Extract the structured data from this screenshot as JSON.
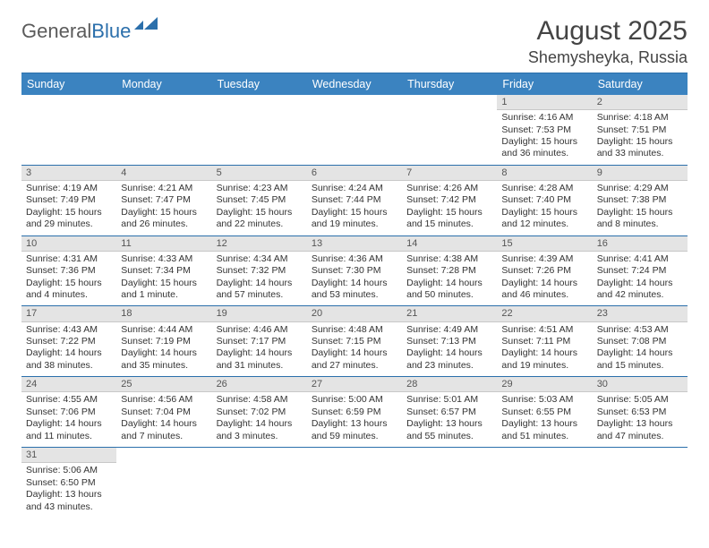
{
  "logo": {
    "text1": "General",
    "text2": "Blue"
  },
  "title": "August 2025",
  "location": "Shemysheyka, Russia",
  "colors": {
    "header_bg": "#3b83c0",
    "header_text": "#ffffff",
    "border": "#2b6fab",
    "daynum_bg": "#e4e4e4",
    "text": "#333333",
    "logo_gray": "#5b5b5b",
    "logo_blue": "#2b6fab"
  },
  "day_names": [
    "Sunday",
    "Monday",
    "Tuesday",
    "Wednesday",
    "Thursday",
    "Friday",
    "Saturday"
  ],
  "weeks": [
    [
      {
        "n": "",
        "empty": true
      },
      {
        "n": "",
        "empty": true
      },
      {
        "n": "",
        "empty": true
      },
      {
        "n": "",
        "empty": true
      },
      {
        "n": "",
        "empty": true
      },
      {
        "n": "1",
        "sunrise": "Sunrise: 4:16 AM",
        "sunset": "Sunset: 7:53 PM",
        "daylight": "Daylight: 15 hours and 36 minutes."
      },
      {
        "n": "2",
        "sunrise": "Sunrise: 4:18 AM",
        "sunset": "Sunset: 7:51 PM",
        "daylight": "Daylight: 15 hours and 33 minutes."
      }
    ],
    [
      {
        "n": "3",
        "sunrise": "Sunrise: 4:19 AM",
        "sunset": "Sunset: 7:49 PM",
        "daylight": "Daylight: 15 hours and 29 minutes."
      },
      {
        "n": "4",
        "sunrise": "Sunrise: 4:21 AM",
        "sunset": "Sunset: 7:47 PM",
        "daylight": "Daylight: 15 hours and 26 minutes."
      },
      {
        "n": "5",
        "sunrise": "Sunrise: 4:23 AM",
        "sunset": "Sunset: 7:45 PM",
        "daylight": "Daylight: 15 hours and 22 minutes."
      },
      {
        "n": "6",
        "sunrise": "Sunrise: 4:24 AM",
        "sunset": "Sunset: 7:44 PM",
        "daylight": "Daylight: 15 hours and 19 minutes."
      },
      {
        "n": "7",
        "sunrise": "Sunrise: 4:26 AM",
        "sunset": "Sunset: 7:42 PM",
        "daylight": "Daylight: 15 hours and 15 minutes."
      },
      {
        "n": "8",
        "sunrise": "Sunrise: 4:28 AM",
        "sunset": "Sunset: 7:40 PM",
        "daylight": "Daylight: 15 hours and 12 minutes."
      },
      {
        "n": "9",
        "sunrise": "Sunrise: 4:29 AM",
        "sunset": "Sunset: 7:38 PM",
        "daylight": "Daylight: 15 hours and 8 minutes."
      }
    ],
    [
      {
        "n": "10",
        "sunrise": "Sunrise: 4:31 AM",
        "sunset": "Sunset: 7:36 PM",
        "daylight": "Daylight: 15 hours and 4 minutes."
      },
      {
        "n": "11",
        "sunrise": "Sunrise: 4:33 AM",
        "sunset": "Sunset: 7:34 PM",
        "daylight": "Daylight: 15 hours and 1 minute."
      },
      {
        "n": "12",
        "sunrise": "Sunrise: 4:34 AM",
        "sunset": "Sunset: 7:32 PM",
        "daylight": "Daylight: 14 hours and 57 minutes."
      },
      {
        "n": "13",
        "sunrise": "Sunrise: 4:36 AM",
        "sunset": "Sunset: 7:30 PM",
        "daylight": "Daylight: 14 hours and 53 minutes."
      },
      {
        "n": "14",
        "sunrise": "Sunrise: 4:38 AM",
        "sunset": "Sunset: 7:28 PM",
        "daylight": "Daylight: 14 hours and 50 minutes."
      },
      {
        "n": "15",
        "sunrise": "Sunrise: 4:39 AM",
        "sunset": "Sunset: 7:26 PM",
        "daylight": "Daylight: 14 hours and 46 minutes."
      },
      {
        "n": "16",
        "sunrise": "Sunrise: 4:41 AM",
        "sunset": "Sunset: 7:24 PM",
        "daylight": "Daylight: 14 hours and 42 minutes."
      }
    ],
    [
      {
        "n": "17",
        "sunrise": "Sunrise: 4:43 AM",
        "sunset": "Sunset: 7:22 PM",
        "daylight": "Daylight: 14 hours and 38 minutes."
      },
      {
        "n": "18",
        "sunrise": "Sunrise: 4:44 AM",
        "sunset": "Sunset: 7:19 PM",
        "daylight": "Daylight: 14 hours and 35 minutes."
      },
      {
        "n": "19",
        "sunrise": "Sunrise: 4:46 AM",
        "sunset": "Sunset: 7:17 PM",
        "daylight": "Daylight: 14 hours and 31 minutes."
      },
      {
        "n": "20",
        "sunrise": "Sunrise: 4:48 AM",
        "sunset": "Sunset: 7:15 PM",
        "daylight": "Daylight: 14 hours and 27 minutes."
      },
      {
        "n": "21",
        "sunrise": "Sunrise: 4:49 AM",
        "sunset": "Sunset: 7:13 PM",
        "daylight": "Daylight: 14 hours and 23 minutes."
      },
      {
        "n": "22",
        "sunrise": "Sunrise: 4:51 AM",
        "sunset": "Sunset: 7:11 PM",
        "daylight": "Daylight: 14 hours and 19 minutes."
      },
      {
        "n": "23",
        "sunrise": "Sunrise: 4:53 AM",
        "sunset": "Sunset: 7:08 PM",
        "daylight": "Daylight: 14 hours and 15 minutes."
      }
    ],
    [
      {
        "n": "24",
        "sunrise": "Sunrise: 4:55 AM",
        "sunset": "Sunset: 7:06 PM",
        "daylight": "Daylight: 14 hours and 11 minutes."
      },
      {
        "n": "25",
        "sunrise": "Sunrise: 4:56 AM",
        "sunset": "Sunset: 7:04 PM",
        "daylight": "Daylight: 14 hours and 7 minutes."
      },
      {
        "n": "26",
        "sunrise": "Sunrise: 4:58 AM",
        "sunset": "Sunset: 7:02 PM",
        "daylight": "Daylight: 14 hours and 3 minutes."
      },
      {
        "n": "27",
        "sunrise": "Sunrise: 5:00 AM",
        "sunset": "Sunset: 6:59 PM",
        "daylight": "Daylight: 13 hours and 59 minutes."
      },
      {
        "n": "28",
        "sunrise": "Sunrise: 5:01 AM",
        "sunset": "Sunset: 6:57 PM",
        "daylight": "Daylight: 13 hours and 55 minutes."
      },
      {
        "n": "29",
        "sunrise": "Sunrise: 5:03 AM",
        "sunset": "Sunset: 6:55 PM",
        "daylight": "Daylight: 13 hours and 51 minutes."
      },
      {
        "n": "30",
        "sunrise": "Sunrise: 5:05 AM",
        "sunset": "Sunset: 6:53 PM",
        "daylight": "Daylight: 13 hours and 47 minutes."
      }
    ],
    [
      {
        "n": "31",
        "sunrise": "Sunrise: 5:06 AM",
        "sunset": "Sunset: 6:50 PM",
        "daylight": "Daylight: 13 hours and 43 minutes."
      },
      {
        "n": "",
        "empty": true
      },
      {
        "n": "",
        "empty": true
      },
      {
        "n": "",
        "empty": true
      },
      {
        "n": "",
        "empty": true
      },
      {
        "n": "",
        "empty": true
      },
      {
        "n": "",
        "empty": true
      }
    ]
  ]
}
